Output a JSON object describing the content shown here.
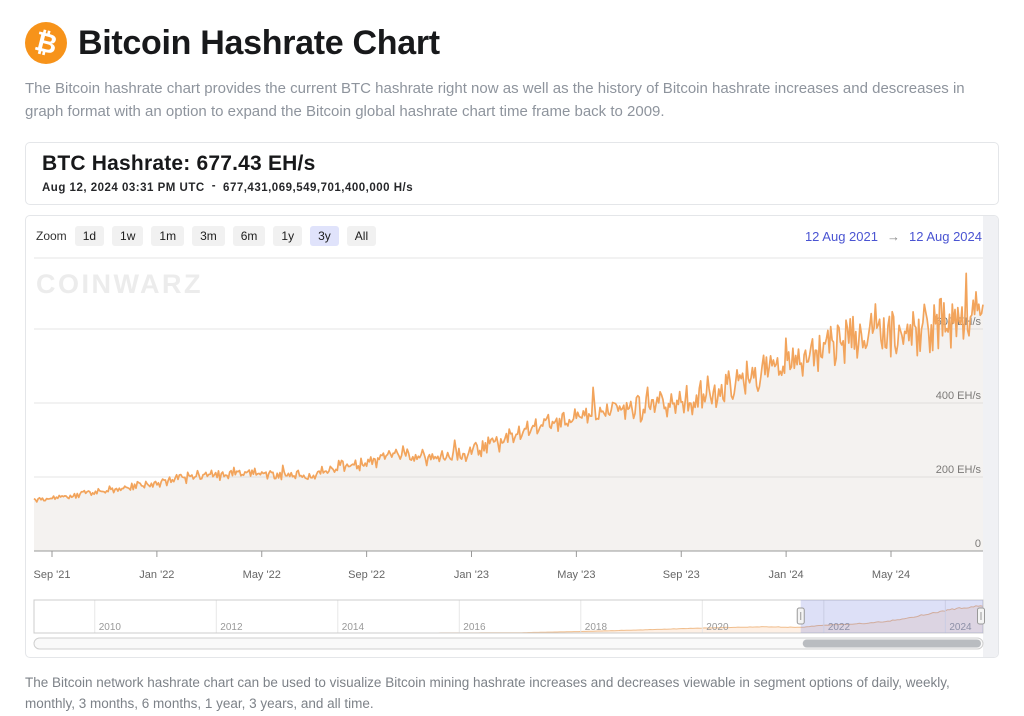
{
  "page": {
    "logo_glyph": "₿",
    "title": "Bitcoin Hashrate Chart",
    "description": "The Bitcoin hashrate chart provides the current BTC hashrate right now as well as the history of Bitcoin hashrate increases and descreases in graph format with an option to expand the Bitcoin global hashrate chart time frame back to 2009.",
    "footer": "The Bitcoin network hashrate chart can be used to visualize Bitcoin mining hashrate increases and decreases viewable in segment options of daily, weekly, monthly, 3 months, 6 months, 1 year, 3 years, and all time."
  },
  "hashrate_card": {
    "title": "BTC Hashrate: 677.43 EH/s",
    "timestamp": "Aug 12, 2024 03:31 PM UTC",
    "separator": "-",
    "full_value": "677,431,069,549,701,400,000 H/s"
  },
  "controls": {
    "zoom_label": "Zoom",
    "buttons": [
      "1d",
      "1w",
      "1m",
      "3m",
      "6m",
      "1y",
      "3y",
      "All"
    ],
    "active": "3y",
    "range_from": "12 Aug 2021",
    "range_arrow": "→",
    "range_to": "12 Aug 2024"
  },
  "watermark": "CoinWarz",
  "colors": {
    "brand_orange": "#f7931a",
    "accent_orange": "#f2a45c",
    "area_fill": "rgba(204,196,186,0.22)",
    "nav_line_orange": "#f0bd8c",
    "nav_area_fill": "rgba(247,163,92,0.16)",
    "selection_blue": "rgba(101,114,220,0.22)",
    "range_blue": "#4a54d2",
    "active_button_bg": "#e0e3fb",
    "grid": "#e6e6e6",
    "axis": "#999999",
    "label_gray": "#666666",
    "nav_label_gray": "#999999",
    "watermark_gray": "#ececec",
    "gutter_gray": "#f0f1f4"
  },
  "chart_data": {
    "type": "area",
    "title": "BTC Hashrate",
    "unit": "EH/s",
    "current_value_ehs": 677.43,
    "ylim": [
      0,
      792
    ],
    "grid": true,
    "legend": "none",
    "yticks": [
      {
        "value": 600,
        "label": "600 EH/s"
      },
      {
        "value": 400,
        "label": "400 EH/s"
      },
      {
        "value": 200,
        "label": "200 EH/s"
      },
      {
        "value": 0,
        "label": "0"
      }
    ],
    "xticks": [
      "Sep '21",
      "Jan '22",
      "May '22",
      "Sep '22",
      "Jan '23",
      "May '23",
      "Sep '23",
      "Jan '24",
      "May '24"
    ],
    "series": [
      {
        "name": "BTC Hashrate (EH/s)",
        "months": [
          "Sep '21",
          "Oct '21",
          "Nov '21",
          "Dec '21",
          "Jan '22",
          "Feb '22",
          "Mar '22",
          "Apr '22",
          "May '22",
          "Jun '22",
          "Jul '22",
          "Aug '22",
          "Sep '22",
          "Oct '22",
          "Nov '22",
          "Dec '22",
          "Jan '23",
          "Feb '23",
          "Mar '23",
          "Apr '23",
          "May '23",
          "Jun '23",
          "Jul '23",
          "Aug '23",
          "Sep '23",
          "Oct '23",
          "Nov '23",
          "Dec '23",
          "Jan '24",
          "Feb '24",
          "Mar '24",
          "Apr '24",
          "May '24",
          "Jun '24",
          "Jul '24",
          "Aug '24"
        ],
        "values": [
          135,
          145,
          158,
          168,
          178,
          190,
          200,
          210,
          215,
          205,
          200,
          222,
          235,
          255,
          262,
          252,
          268,
          292,
          320,
          340,
          360,
          375,
          380,
          392,
          405,
          425,
          450,
          480,
          510,
          540,
          565,
          600,
          585,
          600,
          620,
          660
        ]
      }
    ],
    "navigator": {
      "range_years": [
        2009,
        2024.62
      ],
      "anchor_years": [
        2009,
        2010,
        2011,
        2012,
        2013,
        2014,
        2015,
        2016,
        2017,
        2018,
        2019,
        2020,
        2021,
        2021.62,
        2022,
        2022.5,
        2023,
        2023.5,
        2024,
        2024.62
      ],
      "anchor_values_ehs": [
        0,
        0,
        0.01,
        0.02,
        0.1,
        0.3,
        0.6,
        1.5,
        8,
        35,
        75,
        120,
        150,
        135,
        190,
        215,
        270,
        390,
        550,
        660
      ],
      "year_labels": [
        2010,
        2012,
        2014,
        2016,
        2018,
        2020,
        2022,
        2024
      ],
      "selected_years": [
        2021.62,
        2024.62
      ]
    }
  }
}
